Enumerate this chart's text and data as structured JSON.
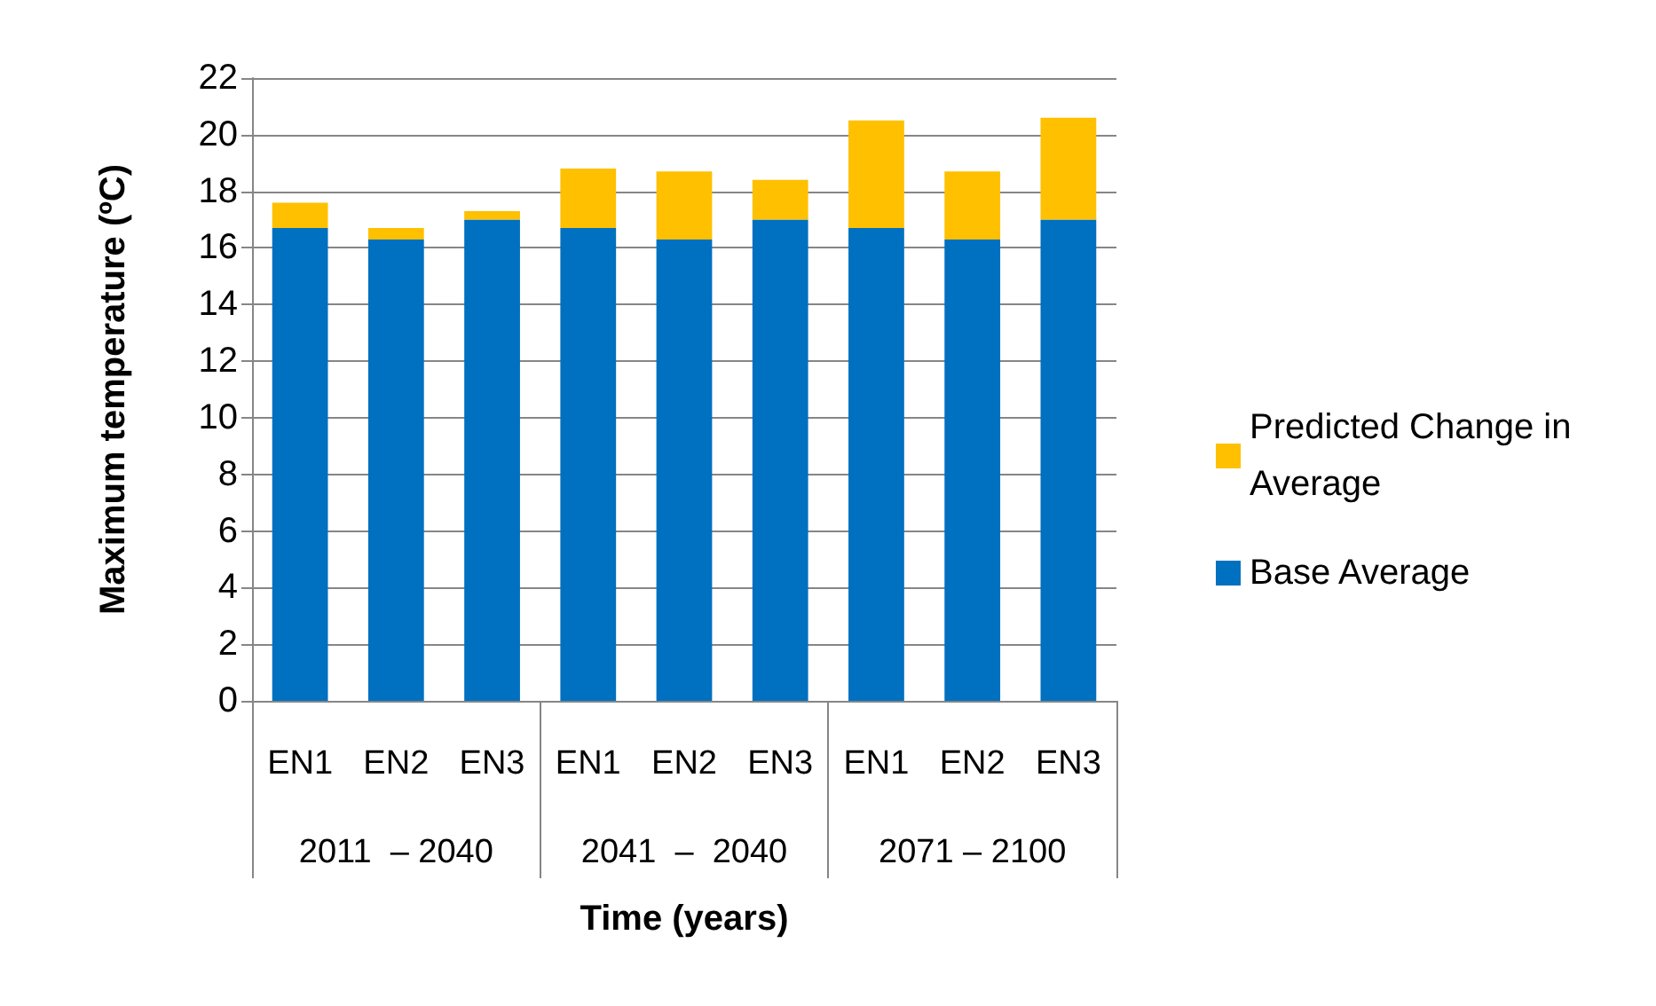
{
  "chart_data": {
    "type": "bar",
    "stacked": true,
    "xlabel": "Time (years)",
    "ylabel": "Maximum temperature (ºC)",
    "categories": [
      "EN1",
      "EN2",
      "EN3",
      "EN1",
      "EN2",
      "EN3",
      "EN1",
      "EN2",
      "EN3"
    ],
    "annotations": [
      "2011  – 2040",
      "2041  –  2040",
      "2071 – 2100"
    ],
    "series": [
      {
        "name": "Base Average",
        "color": "#0070c0",
        "values": [
          16.7,
          16.3,
          17.0,
          16.7,
          16.3,
          17.0,
          16.7,
          16.3,
          17.0
        ]
      },
      {
        "name": "Predicted Change in Average",
        "color": "#ffc000",
        "values": [
          0.9,
          0.4,
          0.3,
          2.1,
          2.4,
          1.4,
          3.8,
          2.4,
          3.6
        ]
      }
    ],
    "ylim": [
      0,
      22
    ],
    "yticks": [
      0,
      2,
      4,
      6,
      8,
      10,
      12,
      14,
      16,
      18,
      20,
      22
    ],
    "grid": "y",
    "legend": "right"
  }
}
